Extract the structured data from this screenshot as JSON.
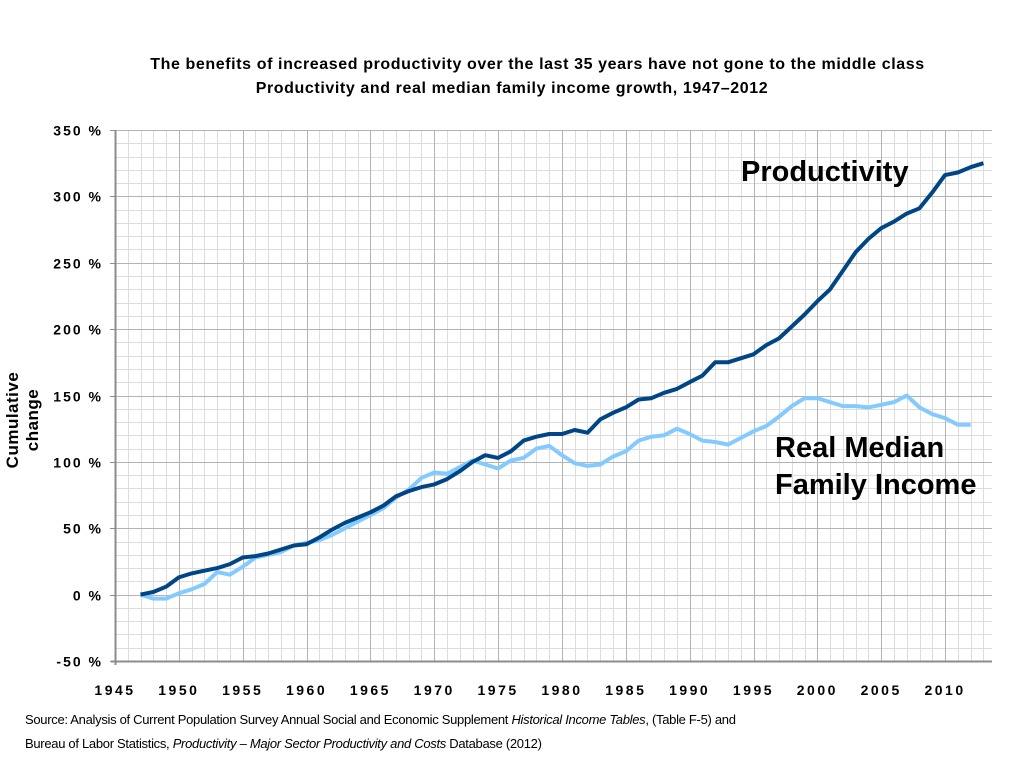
{
  "chart_data": {
    "type": "line",
    "title": "The benefits of increased productivity over the last 35 years have not gone to the middle class",
    "subtitle": "Productivity and real median family income growth, 1947–2012",
    "xlabel": "",
    "ylabel": "Cumulative change",
    "xlim": [
      1945,
      2013
    ],
    "ylim": [
      -50,
      350
    ],
    "x_ticks": [
      1945,
      1950,
      1955,
      1960,
      1965,
      1970,
      1975,
      1980,
      1985,
      1990,
      1995,
      2000,
      2005,
      2010
    ],
    "y_ticks": [
      -50,
      0,
      50,
      100,
      150,
      200,
      250,
      300,
      350
    ],
    "y_tick_labels": [
      "-50 %",
      "0 %",
      "50 %",
      "100 %",
      "150 %",
      "200 %",
      "250 %",
      "300 %",
      "350 %"
    ],
    "grid": true,
    "legend": "inline-annotations",
    "series": [
      {
        "name": "Productivity",
        "color": "#004586",
        "x": [
          1947,
          1948,
          1949,
          1950,
          1951,
          1952,
          1953,
          1954,
          1955,
          1956,
          1957,
          1958,
          1959,
          1960,
          1961,
          1962,
          1963,
          1964,
          1965,
          1966,
          1967,
          1968,
          1969,
          1970,
          1971,
          1972,
          1973,
          1974,
          1975,
          1976,
          1977,
          1978,
          1979,
          1980,
          1981,
          1982,
          1983,
          1984,
          1985,
          1986,
          1987,
          1988,
          1989,
          1990,
          1991,
          1992,
          1993,
          1994,
          1995,
          1996,
          1997,
          1998,
          1999,
          2000,
          2001,
          2002,
          2003,
          2004,
          2005,
          2006,
          2007,
          2008,
          2009,
          2010,
          2011,
          2012,
          2013
        ],
        "values": [
          0,
          2,
          6,
          13,
          16,
          18,
          20,
          23,
          28,
          29,
          31,
          34,
          37,
          38,
          43,
          49,
          54,
          58,
          62,
          67,
          74,
          78,
          81,
          83,
          87,
          93,
          100,
          105,
          103,
          108,
          116,
          119,
          121,
          121,
          124,
          122,
          132,
          137,
          141,
          147,
          148,
          152,
          155,
          160,
          165,
          175,
          175,
          178,
          181,
          188,
          193,
          202,
          211,
          221,
          230,
          244,
          258,
          268,
          276,
          281,
          287,
          291,
          303,
          316,
          318,
          322,
          325
        ]
      },
      {
        "name": "Real Median Family Income",
        "color": "#83caff",
        "x": [
          1947,
          1948,
          1949,
          1950,
          1951,
          1952,
          1953,
          1954,
          1955,
          1956,
          1957,
          1958,
          1959,
          1960,
          1961,
          1962,
          1963,
          1964,
          1965,
          1966,
          1967,
          1968,
          1969,
          1970,
          1971,
          1972,
          1973,
          1974,
          1975,
          1976,
          1977,
          1978,
          1979,
          1980,
          1981,
          1982,
          1983,
          1984,
          1985,
          1986,
          1987,
          1988,
          1989,
          1990,
          1991,
          1992,
          1993,
          1994,
          1995,
          1996,
          1997,
          1998,
          1999,
          2000,
          2001,
          2002,
          2003,
          2004,
          2005,
          2006,
          2007,
          2008,
          2009,
          2010,
          2011,
          2012
        ],
        "values": [
          0,
          -3,
          -3,
          1,
          4,
          8,
          17,
          15,
          21,
          28,
          30,
          32,
          37,
          39,
          41,
          45,
          50,
          55,
          60,
          65,
          73,
          79,
          88,
          92,
          91,
          96,
          101,
          98,
          95,
          101,
          103,
          110,
          112,
          105,
          99,
          97,
          98,
          104,
          108,
          116,
          119,
          120,
          125,
          121,
          116,
          115,
          113,
          118,
          123,
          127,
          134,
          142,
          148,
          148,
          145,
          142,
          142,
          141,
          143,
          145,
          150,
          141,
          136,
          133,
          128,
          128
        ]
      }
    ],
    "annotations": {
      "productivity": "Productivity",
      "income_line1": "Real Median",
      "income_line2": "Family Income"
    }
  },
  "source": {
    "line1_a": "Source:  Analysis of Current Population Survey Annual Social and Economic Supplement ",
    "line1_italic": "Historical Income Tables",
    "line1_b": ", (Table F-5) and",
    "line2_a": "Bureau of Labor Statistics, ",
    "line2_italic": "Productivity – Major Sector Productivity and Costs",
    "line2_b": " Database (2012)"
  }
}
